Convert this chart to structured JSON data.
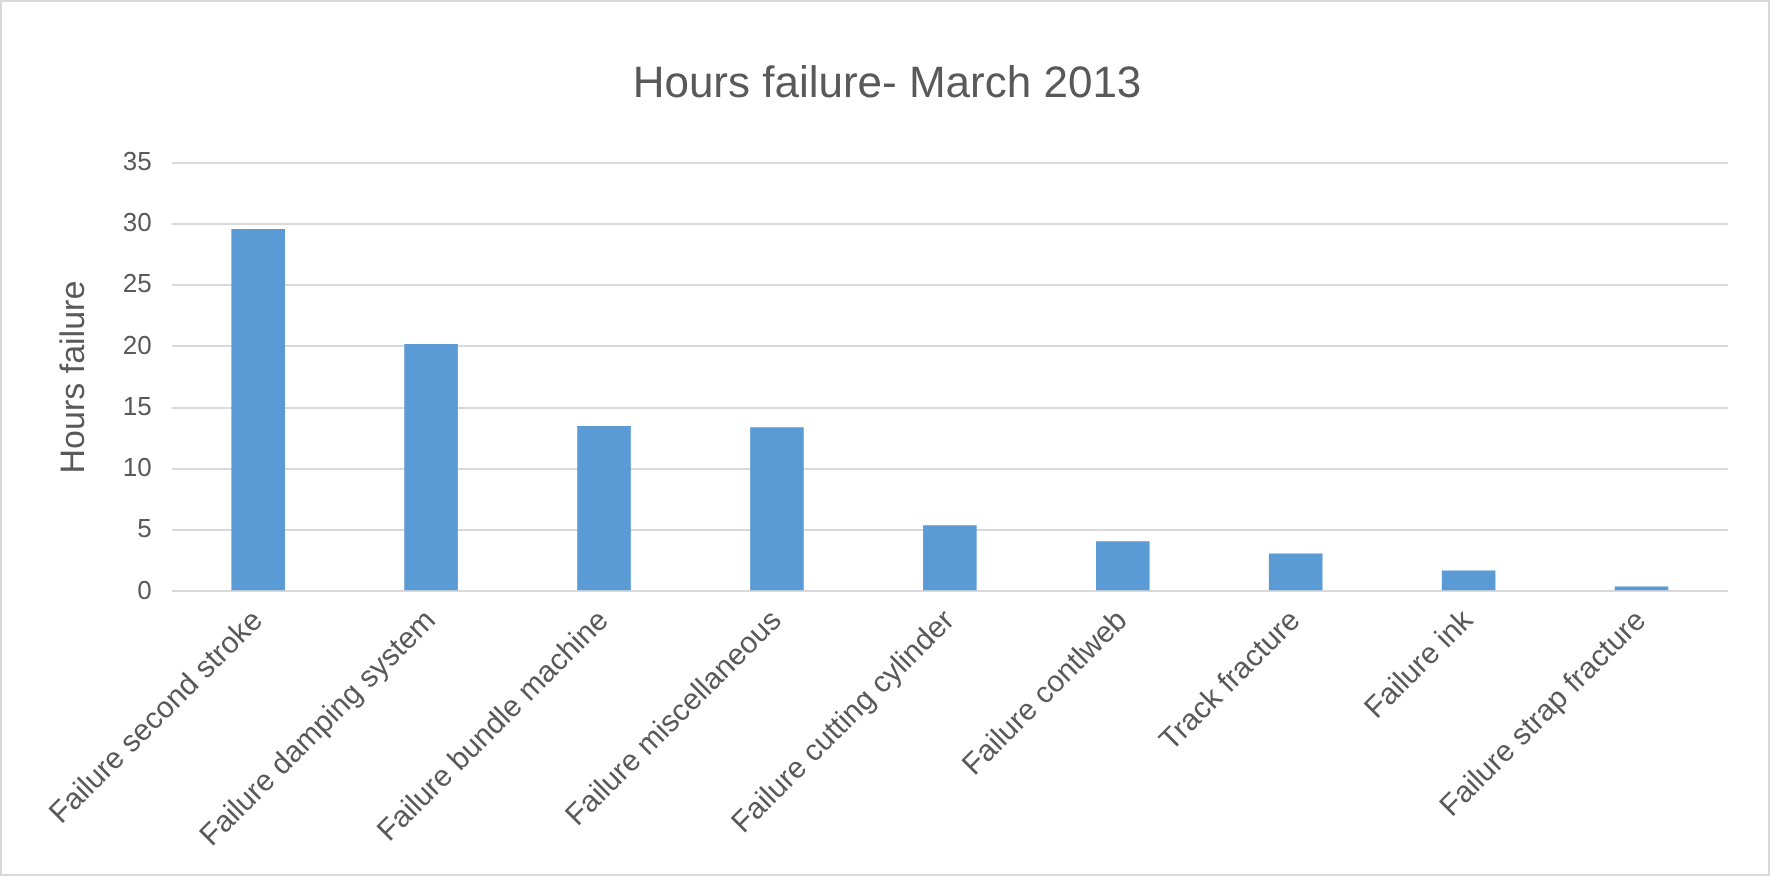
{
  "chart_data": {
    "type": "bar",
    "title": "Hours failure- March 2013",
    "ylabel": "Hours failure",
    "categories": [
      "Failure second stroke",
      "Failure damping system",
      "Failure bundle machine",
      "Failure miscellaneous",
      "Failure cutting cylinder",
      "Failure contlweb",
      "Track fracture",
      "Failure ink",
      "Failure strap fracture"
    ],
    "values": [
      29.6,
      20.2,
      13.5,
      13.4,
      5.4,
      4.1,
      3.1,
      1.7,
      0.4
    ],
    "color": "#5b9bd5",
    "ylim": [
      0,
      35
    ],
    "yticks": [
      0,
      5,
      10,
      15,
      20,
      25,
      30,
      35
    ],
    "grid": "y",
    "legend": false
  }
}
